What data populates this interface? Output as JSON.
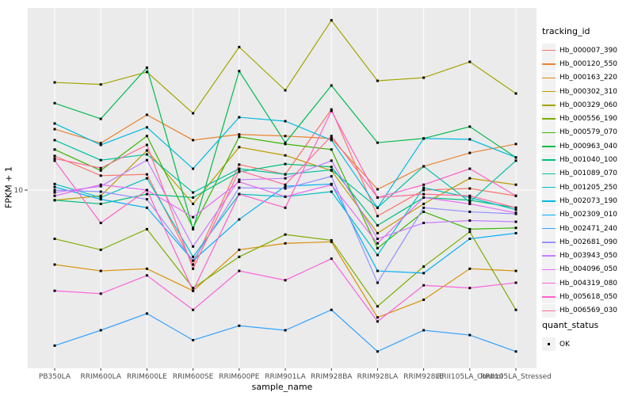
{
  "axes": {
    "x_title": "sample_name",
    "y_title": "FPKM + 1"
  },
  "legend": {
    "tracking_title": "tracking_id",
    "quant_title": "quant_status",
    "quant_items": [
      {
        "label": "OK"
      }
    ]
  },
  "chart_data": {
    "type": "line",
    "xlabel": "sample_name",
    "ylabel": "FPKM + 1",
    "y_scale": "log10",
    "ylim": [
      1.05,
      100
    ],
    "grid": "on",
    "legend_position": "right",
    "point_color": "#000000",
    "point_shape": "square",
    "panel_bg": "#EBEBEB",
    "gridline_color": "#FFFFFF",
    "tick_text_color": "#4D4D4D",
    "y_ticks": [
      {
        "value": 10,
        "label": "10"
      }
    ],
    "categories": [
      "PB350LA",
      "RRIM600LA",
      "RRIM600LE",
      "RRIM600SE",
      "RRIM600PE",
      "RRIM901LA",
      "RRIM928BA",
      "RRIM928LA",
      "RRIM928LE",
      "RRII105LA_Control",
      "RRII105LA_Stressed"
    ],
    "series": [
      {
        "name": "Hb_000007_390",
        "color": "#F8766D",
        "values": [
          15.4,
          12.0,
          12.2,
          3.9,
          13.8,
          12.2,
          27.7,
          7.2,
          10.0,
          10.2,
          9.3
        ]
      },
      {
        "name": "Hb_000120_550",
        "color": "#EA8331",
        "values": [
          21.6,
          18.1,
          25.9,
          18.8,
          20.2,
          19.8,
          19.2,
          10.1,
          13.5,
          16.0,
          17.9
        ]
      },
      {
        "name": "Hb_000163_220",
        "color": "#D89000",
        "values": [
          3.9,
          3.6,
          3.7,
          2.8,
          4.7,
          5.1,
          5.2,
          2.0,
          2.5,
          3.7,
          3.6
        ]
      },
      {
        "name": "Hb_000302_310",
        "color": "#C09B00",
        "values": [
          8.8,
          9.3,
          16.5,
          8.4,
          17.2,
          15.5,
          12.8,
          5.8,
          8.4,
          11.6,
          10.7
        ]
      },
      {
        "name": "Hb_000329_060",
        "color": "#A3A500",
        "values": [
          39.0,
          38.0,
          44.5,
          26.4,
          61.0,
          35.3,
          85.5,
          39.8,
          41.4,
          50.6,
          33.9
        ]
      },
      {
        "name": "Hb_000556_190",
        "color": "#7CAE00",
        "values": [
          5.4,
          4.7,
          6.1,
          2.9,
          4.3,
          5.7,
          5.3,
          2.3,
          3.8,
          5.9,
          2.2
        ]
      },
      {
        "name": "Hb_000579_070",
        "color": "#39B600",
        "values": [
          16.7,
          12.8,
          19.8,
          6.2,
          19.6,
          17.9,
          16.7,
          4.8,
          7.6,
          6.1,
          6.2
        ]
      },
      {
        "name": "Hb_000963_040",
        "color": "#00BB4E",
        "values": [
          30.0,
          24.6,
          47.0,
          6.1,
          45.0,
          18.2,
          37.5,
          18.2,
          19.2,
          22.3,
          15.1
        ]
      },
      {
        "name": "Hb_001040_100",
        "color": "#00BF7D",
        "values": [
          8.8,
          8.4,
          9.5,
          9.1,
          12.6,
          13.9,
          13.4,
          6.4,
          9.1,
          8.8,
          8.0
        ]
      },
      {
        "name": "Hb_001089_070",
        "color": "#00C1A3",
        "values": [
          18.8,
          14.6,
          15.7,
          9.7,
          13.1,
          12.2,
          12.9,
          8.0,
          13.5,
          8.6,
          14.5
        ]
      },
      {
        "name": "Hb_001205_250",
        "color": "#00BFC4",
        "values": [
          10.8,
          9.1,
          11.6,
          4.3,
          9.5,
          9.2,
          9.8,
          4.4,
          10.3,
          9.1,
          7.8
        ]
      },
      {
        "name": "Hb_002073_190",
        "color": "#00BAE0",
        "values": [
          23.2,
          17.7,
          22.1,
          13.1,
          25.1,
          23.9,
          18.8,
          8.0,
          19.2,
          19.0,
          15.1
        ]
      },
      {
        "name": "Hb_002309_010",
        "color": "#00B0F6",
        "values": [
          10.4,
          8.9,
          8.0,
          4.1,
          6.9,
          10.5,
          10.8,
          3.6,
          3.5,
          5.4,
          5.8
        ]
      },
      {
        "name": "Hb_002471_240",
        "color": "#35A2FF",
        "values": [
          1.4,
          1.7,
          2.1,
          1.5,
          1.8,
          1.7,
          2.2,
          1.3,
          1.7,
          1.6,
          1.3
        ]
      },
      {
        "name": "Hb_002681_090",
        "color": "#9590FF",
        "values": [
          10.0,
          9.8,
          8.9,
          4.1,
          10.3,
          10.2,
          11.9,
          3.1,
          8.0,
          7.6,
          7.4
        ]
      },
      {
        "name": "Hb_003943_050",
        "color": "#C77CFF",
        "values": [
          9.7,
          10.5,
          14.6,
          4.9,
          11.4,
          11.6,
          14.5,
          5.4,
          6.6,
          6.8,
          6.7
        ]
      },
      {
        "name": "Hb_004096_050",
        "color": "#E76BF3",
        "values": [
          9.3,
          10.7,
          10.0,
          7.1,
          11.1,
          9.2,
          10.7,
          5.1,
          9.1,
          8.4,
          7.5
        ]
      },
      {
        "name": "Hb_004319_080",
        "color": "#FA62DB",
        "values": [
          2.8,
          2.7,
          3.4,
          2.2,
          3.6,
          3.2,
          4.2,
          1.9,
          3.0,
          2.9,
          3.1
        ]
      },
      {
        "name": "Hb_005618_050",
        "color": "#FF61C9",
        "values": [
          14.5,
          6.6,
          10.0,
          2.8,
          9.5,
          8.0,
          27.2,
          9.1,
          10.7,
          13.1,
          9.3
        ]
      },
      {
        "name": "Hb_006569_030",
        "color": "#FF6A98",
        "values": [
          14.9,
          13.2,
          17.7,
          3.7,
          12.8,
          10.7,
          19.8,
          9.1,
          9.5,
          9.3,
          8.0
        ]
      }
    ]
  }
}
